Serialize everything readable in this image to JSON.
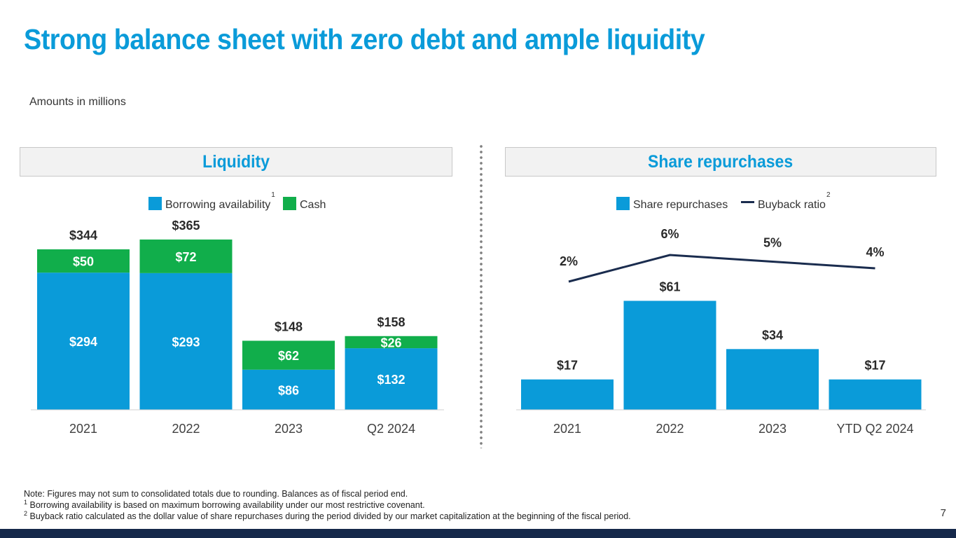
{
  "title": "Strong balance sheet with zero debt and ample liquidity",
  "subtitle": "Amounts in millions",
  "colors": {
    "title": "#0a9bd9",
    "bar_blue": "#0a9bd9",
    "bar_green": "#11ae4b",
    "line": "#1a2c4e",
    "footer": "#15284a"
  },
  "panels": {
    "left_title": "Liquidity",
    "right_title": "Share repurchases"
  },
  "chart_data": [
    {
      "type": "bar",
      "stacked": true,
      "categories": [
        "2021",
        "2022",
        "2023",
        "Q2 2024"
      ],
      "series": [
        {
          "name": "Borrowing availability",
          "footnote": "1",
          "color": "#0a9bd9",
          "values": [
            294,
            293,
            86,
            132
          ],
          "labels": [
            "$294",
            "$293",
            "$86",
            "$132"
          ]
        },
        {
          "name": "Cash",
          "color": "#11ae4b",
          "values": [
            50,
            72,
            62,
            26
          ],
          "labels": [
            "$50",
            "$72",
            "$62",
            "$26"
          ]
        }
      ],
      "totals": [
        344,
        365,
        148,
        158
      ],
      "total_labels": [
        "$344",
        "$365",
        "$148",
        "$158"
      ],
      "legend_position": "top"
    },
    {
      "type": "bar",
      "categories": [
        "2021",
        "2022",
        "2023",
        "YTD Q2 2024"
      ],
      "series": [
        {
          "name": "Share repurchases",
          "kind": "bar",
          "color": "#0a9bd9",
          "values": [
            17,
            61,
            34,
            17
          ],
          "labels": [
            "$17",
            "$61",
            "$34",
            "$17"
          ]
        },
        {
          "name": "Buyback ratio",
          "footnote": "2",
          "kind": "line",
          "color": "#1a2c4e",
          "values": [
            2,
            6,
            5,
            4
          ],
          "labels": [
            "2%",
            "6%",
            "5%",
            "4%"
          ]
        }
      ],
      "legend_position": "top"
    }
  ],
  "notes": {
    "main": "Note: Figures may not sum to consolidated totals due to rounding. Balances as of fiscal period end.",
    "fn1_mark": "1",
    "fn1": "Borrowing availability is based on maximum borrowing availability under our most restrictive covenant.",
    "fn2_mark": "2",
    "fn2": "Buyback ratio calculated as the dollar value of share repurchases during the period divided by our market capitalization at the beginning of the fiscal period."
  },
  "page_number": "7"
}
